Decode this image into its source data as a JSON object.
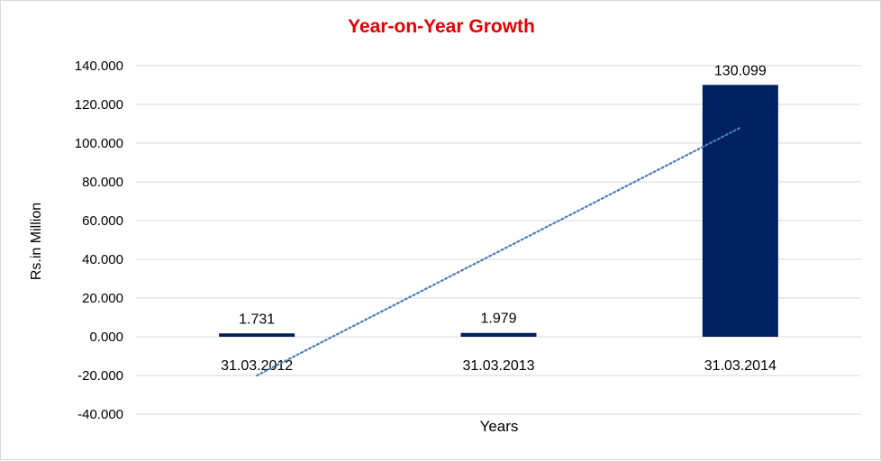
{
  "chart_data": {
    "type": "bar",
    "title": "Year-on-Year Growth",
    "xlabel": "Years",
    "ylabel": "Rs.in Million",
    "categories": [
      "31.03.2012",
      "31.03.2013",
      "31.03.2014"
    ],
    "values": [
      1.731,
      1.979,
      130.099
    ],
    "data_labels": [
      "1.731",
      "1.979",
      "130.099"
    ],
    "ylim": [
      -40,
      140
    ],
    "yticks": [
      {
        "value": 140,
        "label": "140.000"
      },
      {
        "value": 120,
        "label": "120.000"
      },
      {
        "value": 100,
        "label": "100.000"
      },
      {
        "value": 80,
        "label": "80.000"
      },
      {
        "value": 60,
        "label": "60.000"
      },
      {
        "value": 40,
        "label": "40.000"
      },
      {
        "value": 20,
        "label": "20.000"
      },
      {
        "value": 0,
        "label": "0.000"
      },
      {
        "value": -20,
        "label": "-20.000"
      },
      {
        "value": -40,
        "label": "-40.000"
      }
    ],
    "grid": true,
    "trendline": {
      "type": "linear",
      "style": "dotted",
      "start_value": -20,
      "end_value": 108
    },
    "colors": {
      "bar": "#002060",
      "trendline": "#4a7ebb",
      "grid": "#d9d9d9",
      "title": "#e00000"
    }
  }
}
